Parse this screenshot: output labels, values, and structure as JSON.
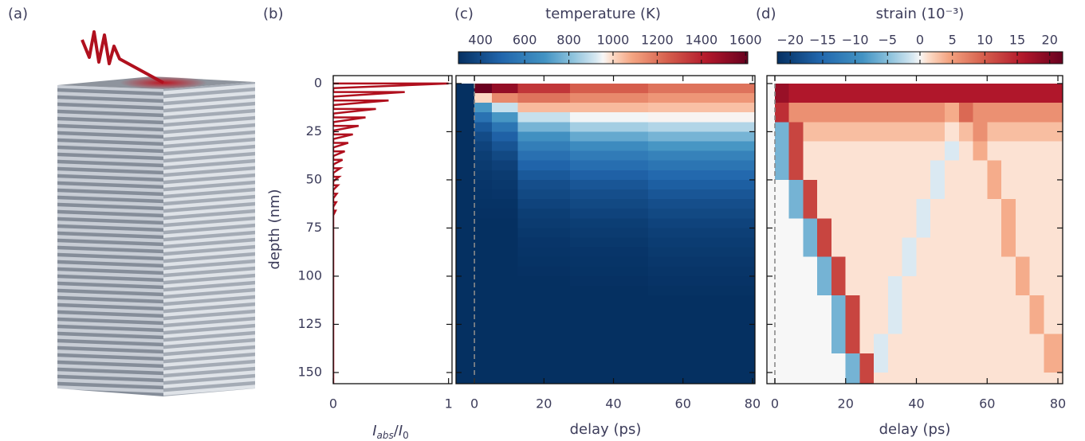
{
  "illustration": {
    "panel_label": "(a)"
  },
  "chart_data": [
    {
      "type": "line",
      "panel_label": "(b)",
      "color": "#b0101e",
      "xlabel": [
        "I",
        "abs",
        "/",
        "I",
        "0"
      ],
      "ylabel": "depth (nm)",
      "xlim": [
        0,
        1.03
      ],
      "xticks": [
        0,
        1
      ],
      "ylim": [
        -4.1,
        155.8
      ],
      "yticks": [
        0,
        25,
        50,
        75,
        100,
        125,
        150
      ],
      "depth": [
        0,
        0,
        2.4,
        4.4,
        4.4,
        6.8,
        8.8,
        8.8,
        11.2,
        13.2,
        13.2,
        15.6,
        17.6,
        17.6,
        20,
        22,
        22,
        24.4,
        26.4,
        26.4,
        28.8,
        30.8,
        30.8,
        33.2,
        35.2,
        35.2,
        37.6,
        39.6,
        39.6,
        42,
        44,
        44,
        46.4,
        48.4,
        48.4,
        50.8,
        52.8,
        52.8,
        55.2,
        57.2,
        57.2,
        59.6,
        61.6,
        61.6,
        64,
        66,
        66,
        68.4,
        155.8
      ],
      "values": [
        0,
        1,
        0,
        0,
        0.62,
        0,
        0,
        0.48,
        0,
        0,
        0.37,
        0,
        0,
        0.28,
        0,
        0,
        0.22,
        0,
        0,
        0.17,
        0,
        0,
        0.13,
        0,
        0,
        0.1,
        0,
        0,
        0.08,
        0,
        0,
        0.06,
        0,
        0,
        0.05,
        0,
        0,
        0.04,
        0,
        0,
        0.03,
        0,
        0,
        0.025,
        0,
        0,
        0.02,
        0,
        0
      ]
    },
    {
      "type": "heatmap",
      "panel_label": "(c)",
      "xlabel": "delay (ps)",
      "colormap": "RdBu_r",
      "xlim": [
        -5.3,
        80.7
      ],
      "xticks": [
        0,
        20,
        40,
        60,
        80
      ],
      "ylim": [
        -4.1,
        155.8
      ],
      "yticks": [
        0,
        25,
        50,
        75,
        100,
        125,
        150
      ],
      "ytick_labels": false,
      "vline": 0,
      "vline_color": "#8a8a8a",
      "colorbar": {
        "label": "temperature (K)",
        "lim": [
          300,
          1610
        ],
        "ticks": [
          400,
          600,
          800,
          1000,
          1200,
          1400,
          1600
        ]
      },
      "x": [
        -2.5,
        2.5,
        7.5,
        17.5,
        37.5,
        62.5
      ],
      "y": [
        2.5,
        7.5,
        12.5,
        17.5,
        22.5,
        27.5,
        32.5,
        37.5,
        42.5,
        47.5,
        52.5,
        57.5,
        62.5,
        67.5,
        72.5,
        77.5,
        82.5,
        87.5,
        92.5,
        97.5,
        102.5,
        107.5,
        112.5,
        117.5,
        122.5,
        127.5,
        132.5,
        137.5,
        142.5,
        147.5,
        152.5,
        157.5
      ],
      "z": [
        [
          300,
          1600,
          1500,
          1350,
          1250,
          1200
        ],
        [
          300,
          1000,
          1150,
          1200,
          1150,
          1120
        ],
        [
          300,
          700,
          900,
          1050,
          1050,
          1040
        ],
        [
          300,
          550,
          700,
          900,
          950,
          960
        ],
        [
          300,
          450,
          560,
          780,
          850,
          870
        ],
        [
          300,
          400,
          480,
          680,
          750,
          780
        ],
        [
          300,
          370,
          430,
          600,
          660,
          700
        ],
        [
          300,
          350,
          390,
          540,
          590,
          620
        ],
        [
          300,
          340,
          360,
          490,
          530,
          560
        ],
        [
          300,
          330,
          340,
          450,
          480,
          510
        ],
        [
          300,
          320,
          330,
          410,
          440,
          470
        ],
        [
          300,
          315,
          320,
          390,
          410,
          440
        ],
        [
          300,
          310,
          310,
          370,
          390,
          410
        ],
        [
          300,
          305,
          305,
          350,
          370,
          390
        ],
        [
          300,
          300,
          300,
          340,
          350,
          370
        ],
        [
          300,
          300,
          300,
          330,
          340,
          355
        ],
        [
          300,
          300,
          300,
          320,
          330,
          345
        ],
        [
          300,
          300,
          300,
          315,
          320,
          335
        ],
        [
          300,
          300,
          300,
          310,
          315,
          325
        ],
        [
          300,
          300,
          300,
          305,
          310,
          318
        ],
        [
          300,
          300,
          300,
          300,
          305,
          312
        ],
        [
          300,
          300,
          300,
          300,
          300,
          306
        ],
        [
          300,
          300,
          300,
          300,
          300,
          300
        ],
        [
          300,
          300,
          300,
          300,
          300,
          300
        ],
        [
          300,
          300,
          300,
          300,
          300,
          300
        ],
        [
          300,
          300,
          300,
          300,
          300,
          300
        ],
        [
          300,
          300,
          300,
          300,
          300,
          300
        ],
        [
          300,
          300,
          300,
          300,
          300,
          300
        ],
        [
          300,
          300,
          300,
          300,
          300,
          300
        ],
        [
          300,
          300,
          300,
          300,
          300,
          300
        ],
        [
          300,
          300,
          300,
          300,
          300,
          300
        ],
        [
          300,
          300,
          300,
          300,
          300,
          300
        ]
      ]
    },
    {
      "type": "heatmap",
      "panel_label": "(d)",
      "xlabel": "delay (ps)",
      "colormap": "RdBu_r",
      "xlim": [
        -2.25,
        81.35
      ],
      "xticks": [
        0,
        20,
        40,
        60,
        80
      ],
      "ylim": [
        -4.1,
        155.8
      ],
      "yticks": [
        0,
        25,
        50,
        75,
        100,
        125,
        150
      ],
      "ytick_labels": false,
      "vline": 0,
      "vline_color": "#8a8a8a",
      "colorbar": {
        "label": "strain (10⁻³)",
        "lim": [
          -22,
          22
        ],
        "ticks": [
          {
            "value": -20,
            "label": "−20"
          },
          {
            "value": -15,
            "label": "−15"
          },
          {
            "value": -10,
            "label": "−10"
          },
          {
            "value": -5,
            "label": "−5"
          },
          0,
          5,
          10,
          15,
          20
        ]
      },
      "x": [
        -2,
        2,
        6,
        10,
        14,
        18,
        22,
        26,
        30,
        34,
        38,
        42,
        46,
        50,
        54,
        58,
        62,
        66,
        70,
        74,
        78
      ],
      "y": [
        5,
        15,
        25,
        35,
        45,
        55,
        65,
        75,
        85,
        95,
        105,
        115,
        125,
        135,
        145,
        155
      ],
      "z": [
        [
          0,
          18,
          16,
          16,
          16,
          16,
          16,
          16,
          16,
          16,
          16,
          16,
          16,
          16,
          16,
          16,
          16,
          16,
          16,
          16,
          16
        ],
        [
          0,
          14,
          6,
          6,
          6,
          6,
          6,
          6,
          6,
          6,
          6,
          6,
          6,
          4,
          9,
          6,
          6,
          6,
          6,
          6,
          6
        ],
        [
          0,
          -6,
          12,
          3,
          3,
          3,
          3,
          3,
          3,
          3,
          3,
          3,
          3,
          1,
          3,
          6,
          3,
          3,
          3,
          3,
          3
        ],
        [
          0,
          -6,
          12,
          1,
          1,
          1,
          1,
          1,
          1,
          1,
          1,
          1,
          1,
          -1,
          1,
          4,
          1,
          1,
          1,
          1,
          1
        ],
        [
          0,
          -6,
          12,
          1,
          1,
          1,
          1,
          1,
          1,
          1,
          1,
          1,
          -1,
          1,
          1,
          1,
          4,
          1,
          1,
          1,
          1
        ],
        [
          0,
          0,
          -6,
          12,
          1,
          1,
          1,
          1,
          1,
          1,
          1,
          1,
          -1,
          1,
          1,
          1,
          4,
          1,
          1,
          1,
          1
        ],
        [
          0,
          0,
          -6,
          12,
          1,
          1,
          1,
          1,
          1,
          1,
          1,
          -1,
          1,
          1,
          1,
          1,
          1,
          4,
          1,
          1,
          1
        ],
        [
          0,
          0,
          0,
          -6,
          12,
          1,
          1,
          1,
          1,
          1,
          1,
          -1,
          1,
          1,
          1,
          1,
          1,
          4,
          1,
          1,
          1
        ],
        [
          0,
          0,
          0,
          -6,
          12,
          1,
          1,
          1,
          1,
          1,
          -1,
          1,
          1,
          1,
          1,
          1,
          1,
          4,
          1,
          1,
          1
        ],
        [
          0,
          0,
          0,
          0,
          -6,
          12,
          1,
          1,
          1,
          1,
          -1,
          1,
          1,
          1,
          1,
          1,
          1,
          1,
          4,
          1,
          1
        ],
        [
          0,
          0,
          0,
          0,
          -6,
          12,
          1,
          1,
          1,
          -1,
          1,
          1,
          1,
          1,
          1,
          1,
          1,
          1,
          4,
          1,
          1
        ],
        [
          0,
          0,
          0,
          0,
          0,
          -6,
          12,
          1,
          1,
          -1,
          1,
          1,
          1,
          1,
          1,
          1,
          1,
          1,
          1,
          4,
          1
        ],
        [
          0,
          0,
          0,
          0,
          0,
          -6,
          12,
          1,
          1,
          -1,
          1,
          1,
          1,
          1,
          1,
          1,
          1,
          1,
          1,
          4,
          1
        ],
        [
          0,
          0,
          0,
          0,
          0,
          -6,
          12,
          1,
          -1,
          1,
          1,
          1,
          1,
          1,
          1,
          1,
          1,
          1,
          1,
          1,
          4
        ],
        [
          0,
          0,
          0,
          0,
          0,
          0,
          -6,
          12,
          -1,
          1,
          1,
          1,
          1,
          1,
          1,
          1,
          1,
          1,
          1,
          1,
          4
        ],
        [
          0,
          0,
          0,
          0,
          0,
          0,
          -6,
          12,
          1,
          1,
          1,
          1,
          1,
          1,
          1,
          1,
          1,
          1,
          1,
          1,
          1
        ]
      ]
    }
  ]
}
